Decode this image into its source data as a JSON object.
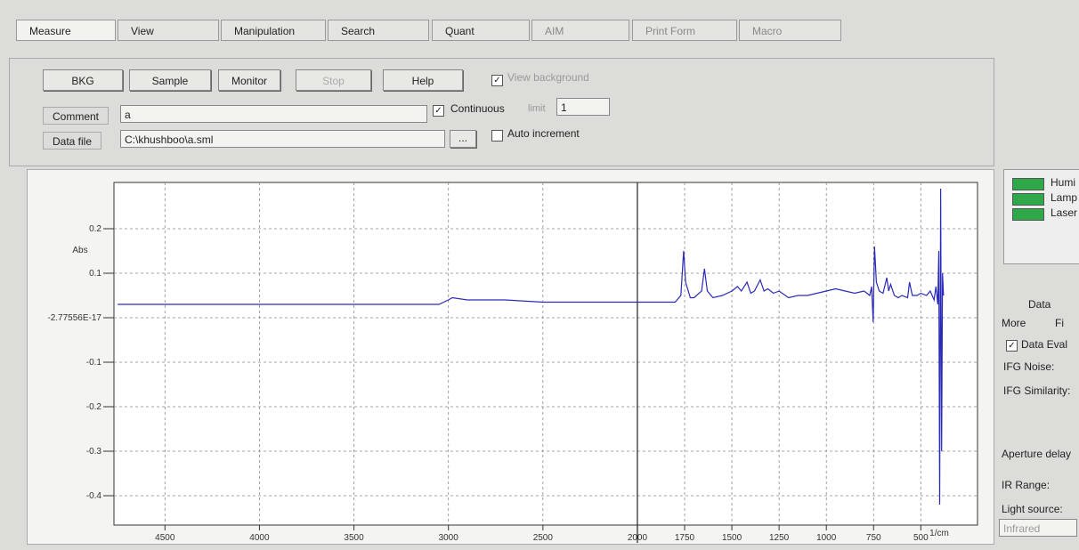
{
  "tabs": [
    "Measure",
    "View",
    "Manipulation",
    "Search",
    "Quant",
    "AIM",
    "Print Form",
    "Macro"
  ],
  "buttons": [
    "BKG",
    "Sample",
    "Monitor",
    "Stop",
    "Help"
  ],
  "view_background": "View background",
  "comment": {
    "label": "Comment",
    "value": "a"
  },
  "continuous": {
    "label": "Continuous",
    "limit_label": "limit",
    "limit": "1"
  },
  "data_file": {
    "label": "Data file",
    "value": "C:\\khushboo\\a.sml",
    "browse": "..."
  },
  "auto_increment": "Auto increment",
  "status": [
    "Humi",
    "Lamp",
    "Laser"
  ],
  "side": {
    "data": "Data",
    "more": "More",
    "fi": "Fi",
    "data_eval": "Data Eval",
    "ifg_noise": "IFG Noise:",
    "ifg_similarity": "IFG Similarity:",
    "aperture": "Aperture delay",
    "ir_range": "IR Range:",
    "light_source": "Light source:",
    "light_value": "Infrared"
  },
  "chart_data": {
    "type": "line",
    "x_label": "1/cm",
    "y_label": "Abs",
    "xlim": [
      4770,
      200
    ],
    "ylim": [
      -0.466,
      0.304
    ],
    "xticks": [
      4500,
      4000,
      3500,
      3000,
      2500,
      2000,
      1750,
      1500,
      1250,
      1000,
      750,
      500
    ],
    "yticks": [
      0.2,
      0.1,
      {
        "value": -2.77556e-17,
        "label": "-2.77556E-17"
      },
      -0.1,
      -0.2,
      -0.3,
      -0.4
    ],
    "grid": true,
    "cursor_x": 2000,
    "x": [
      4750,
      4500,
      4000,
      3500,
      3050,
      3000,
      2980,
      2900,
      2700,
      2500,
      2300,
      2100,
      2000,
      1900,
      1800,
      1770,
      1755,
      1745,
      1720,
      1700,
      1660,
      1645,
      1630,
      1600,
      1550,
      1500,
      1470,
      1450,
      1420,
      1400,
      1380,
      1350,
      1330,
      1310,
      1280,
      1250,
      1200,
      1150,
      1100,
      1050,
      1000,
      950,
      900,
      850,
      800,
      770,
      760,
      752,
      745,
      735,
      720,
      700,
      680,
      670,
      660,
      640,
      620,
      600,
      570,
      560,
      545,
      520,
      500,
      470,
      450,
      430,
      420,
      410,
      405,
      400,
      395,
      390,
      385,
      380
    ],
    "series": [
      {
        "color": "#2a2ab8",
        "values": [
          0.03,
          0.03,
          0.03,
          0.03,
          0.03,
          0.04,
          0.045,
          0.04,
          0.04,
          0.035,
          0.035,
          0.035,
          0.035,
          0.035,
          0.035,
          0.05,
          0.15,
          0.08,
          0.045,
          0.045,
          0.06,
          0.11,
          0.06,
          0.045,
          0.05,
          0.06,
          0.07,
          0.06,
          0.08,
          0.055,
          0.06,
          0.085,
          0.06,
          0.065,
          0.055,
          0.06,
          0.045,
          0.05,
          0.05,
          0.055,
          0.06,
          0.065,
          0.06,
          0.055,
          0.06,
          0.05,
          0.07,
          -0.01,
          0.16,
          0.08,
          0.06,
          0.055,
          0.09,
          0.06,
          0.075,
          0.05,
          0.045,
          0.05,
          0.045,
          0.08,
          0.05,
          0.05,
          0.055,
          0.05,
          0.06,
          0.04,
          0.07,
          0.03,
          0.15,
          -0.42,
          0.29,
          -0.3,
          0.1,
          0.05
        ]
      }
    ]
  }
}
